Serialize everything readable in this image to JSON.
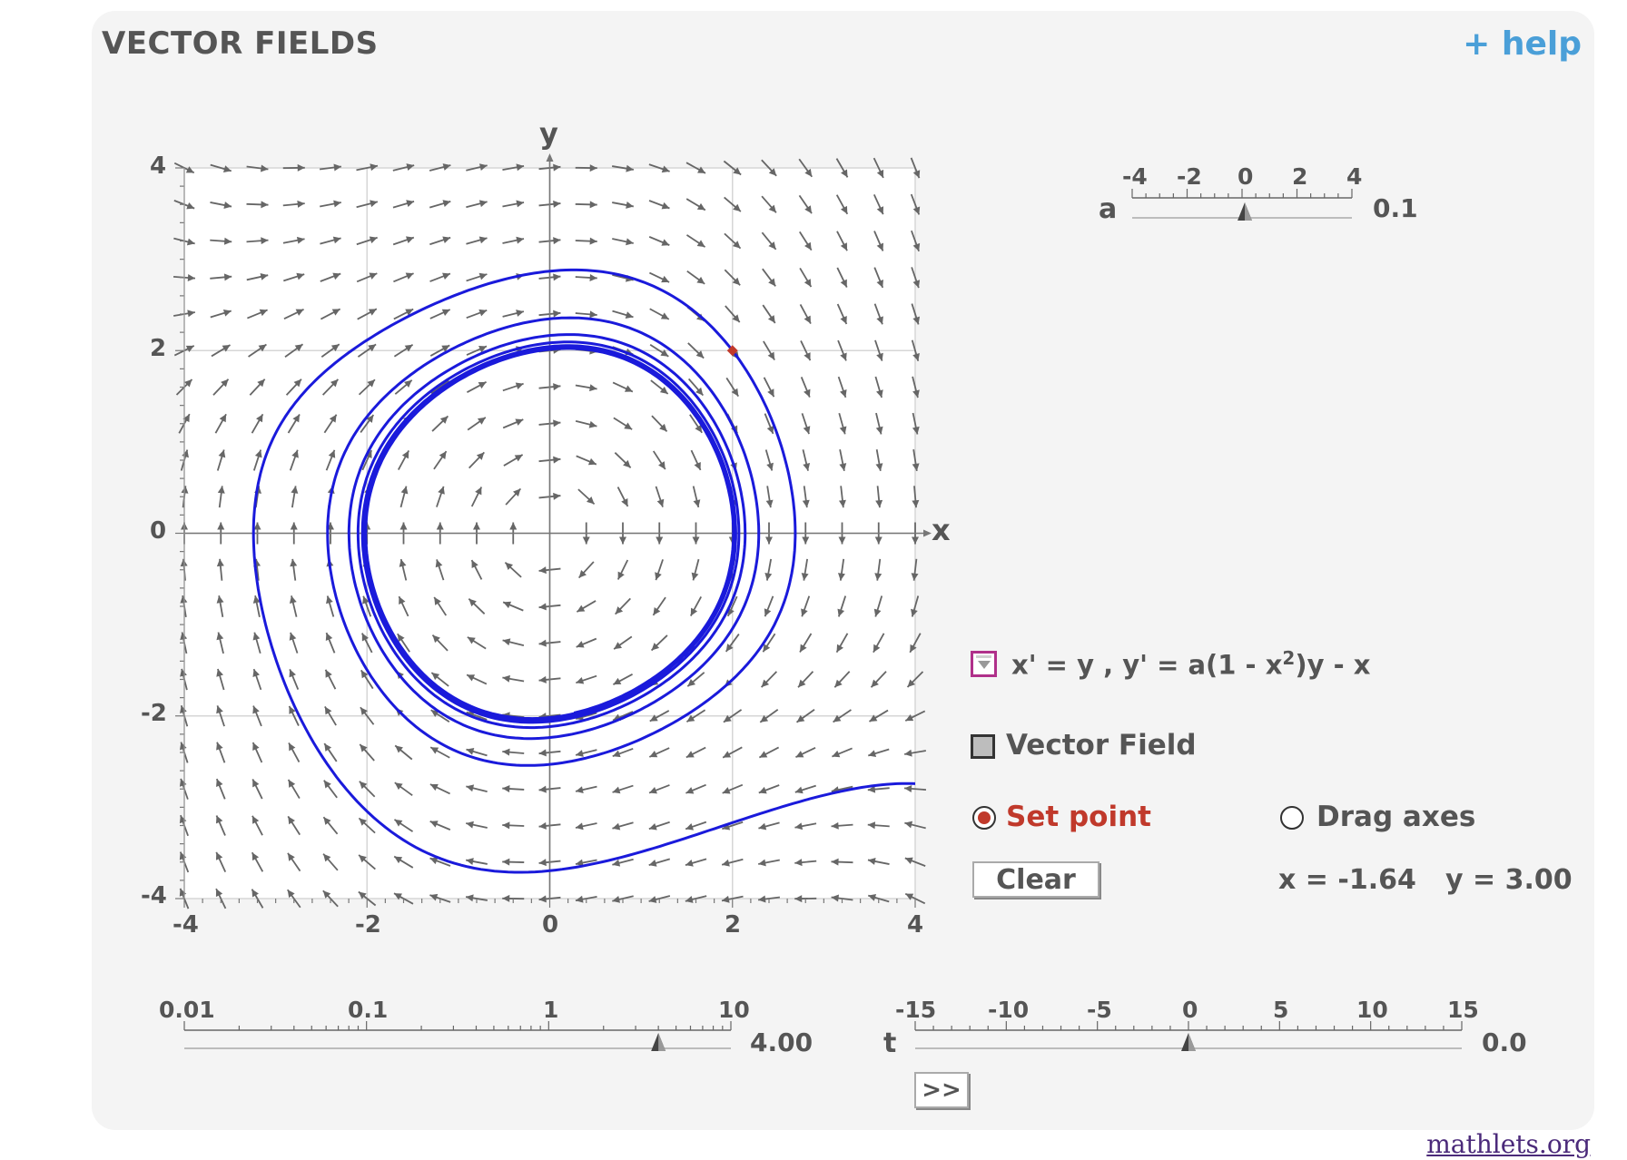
{
  "header": {
    "title": "VECTOR FIELDS",
    "help_label": "+ help"
  },
  "plot": {
    "x_axis_label": "x",
    "y_axis_label": "y",
    "x_ticks": [
      "-4",
      "-2",
      "0",
      "2",
      "4"
    ],
    "y_ticks": [
      "4",
      "2",
      "0",
      "-2",
      "-4"
    ],
    "xlim": [
      -4,
      4
    ],
    "ylim": [
      -4,
      4
    ],
    "grid": true,
    "vector_field_color": "#666666",
    "trajectory_color": "#1a1adb",
    "point_color": "#c0392b",
    "initial_point": {
      "x": 2.0,
      "y": 2.0
    },
    "parameter_a": 0.1
  },
  "a_slider": {
    "label": "a",
    "ticks": [
      "-4",
      "-2",
      "0",
      "2",
      "4"
    ],
    "value": 0.1,
    "value_text": "0.1"
  },
  "equation": {
    "text": "x' = y  ,  y' = a(1 - x",
    "sup": "2",
    "tail": ")y - x"
  },
  "controls": {
    "vector_field_label": "Vector Field",
    "set_point_label": "Set point",
    "drag_axes_label": "Drag axes",
    "clear_label": "Clear",
    "x_readout": "x = -1.64",
    "y_readout": "y = 3.00"
  },
  "scale_slider": {
    "ticks": [
      "0.01",
      "0.1",
      "1",
      "10"
    ],
    "value": 4.0,
    "value_text": "4.00"
  },
  "t_slider": {
    "label": "t",
    "ticks": [
      "-15",
      "-10",
      "-5",
      "0",
      "5",
      "10",
      "15"
    ],
    "value": 0.0,
    "value_text": "0.0"
  },
  "play_label": ">>",
  "footer": {
    "link": "mathlets.org"
  }
}
